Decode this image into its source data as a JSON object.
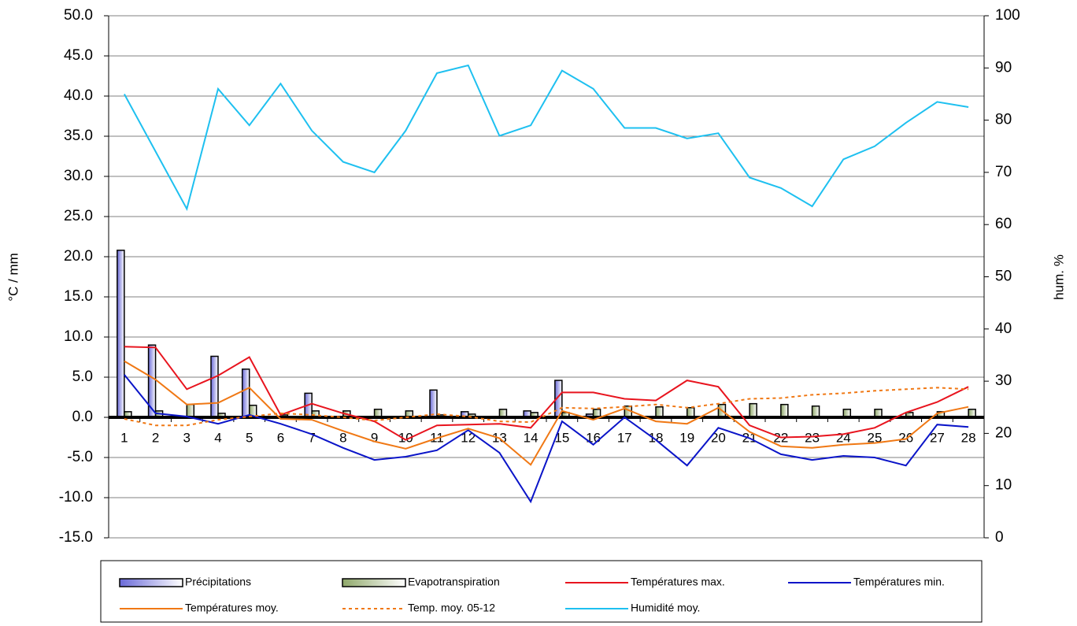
{
  "chart_data": {
    "type": "bar",
    "y_label": "°C / mm",
    "y2_label": "hum. %",
    "categories": [
      "1",
      "2",
      "3",
      "4",
      "5",
      "6",
      "7",
      "8",
      "9",
      "10",
      "11",
      "12",
      "13",
      "14",
      "15",
      "16",
      "17",
      "18",
      "19",
      "20",
      "21",
      "22",
      "23",
      "24",
      "25",
      "26",
      "27",
      "28"
    ],
    "ylim": [
      -15,
      50
    ],
    "yticks": [
      {
        "value": -15,
        "label": "-15.0"
      },
      {
        "value": -10,
        "label": "-10.0"
      },
      {
        "value": -5,
        "label": "-5.0"
      },
      {
        "value": 0,
        "label": "0.0"
      },
      {
        "value": 5,
        "label": "5.0"
      },
      {
        "value": 10,
        "label": "10.0"
      },
      {
        "value": 15,
        "label": "15.0"
      },
      {
        "value": 20,
        "label": "20.0"
      },
      {
        "value": 25,
        "label": "25.0"
      },
      {
        "value": 30,
        "label": "30.0"
      },
      {
        "value": 35,
        "label": "35.0"
      },
      {
        "value": 40,
        "label": "40.0"
      },
      {
        "value": 45,
        "label": "45.0"
      },
      {
        "value": 50,
        "label": "50.0"
      }
    ],
    "y2lim": [
      0,
      100
    ],
    "y2ticks": [
      0,
      10,
      20,
      30,
      40,
      50,
      60,
      70,
      80,
      90,
      100
    ],
    "grid": true,
    "series": [
      {
        "name": "Précipitations",
        "type": "bar",
        "color": "#6a6ad8",
        "values": [
          20.8,
          9.0,
          0,
          7.6,
          6.0,
          0,
          3.0,
          0,
          0,
          0,
          3.4,
          0.7,
          0,
          0.8,
          4.6,
          0.4,
          0,
          0,
          0,
          0,
          0,
          0,
          0,
          0,
          0,
          0,
          0,
          0
        ]
      },
      {
        "name": "Evapotranspiration",
        "type": "bar",
        "color": "#8fa86a",
        "values": [
          0.7,
          0.8,
          1.6,
          0.5,
          1.5,
          0.3,
          0.8,
          0.8,
          1.0,
          0.8,
          0.3,
          0.4,
          1.0,
          0.6,
          0.6,
          1.0,
          1.4,
          1.3,
          1.2,
          1.6,
          1.7,
          1.6,
          1.4,
          1.0,
          1.0,
          0.6,
          0.7,
          1.0
        ]
      },
      {
        "name": "Températures max.",
        "type": "line",
        "color": "#e8141e",
        "values": [
          8.8,
          8.7,
          3.5,
          5.2,
          7.5,
          0.3,
          1.7,
          0.5,
          -0.5,
          -2.8,
          -1.0,
          -0.9,
          -0.8,
          -1.3,
          3.1,
          3.1,
          2.3,
          2.1,
          4.6,
          3.8,
          -1.0,
          -2.5,
          -2.4,
          -2.1,
          -1.3,
          0.6,
          1.9,
          3.8
        ]
      },
      {
        "name": "Températures min.",
        "type": "line",
        "color": "#0a14c8",
        "values": [
          5.3,
          0.5,
          0.1,
          -0.8,
          0.3,
          -0.8,
          -2.1,
          -3.8,
          -5.3,
          -4.9,
          -4.1,
          -1.6,
          -4.4,
          -10.5,
          -0.5,
          -3.4,
          0.0,
          -2.8,
          -6.0,
          -1.3,
          -2.6,
          -4.6,
          -5.3,
          -4.8,
          -5.0,
          -6.0,
          -0.9,
          -1.2
        ]
      },
      {
        "name": "Températures moy.",
        "type": "line",
        "color": "#f07814",
        "values": [
          7.0,
          4.7,
          1.6,
          1.8,
          3.7,
          -0.2,
          -0.3,
          -1.7,
          -3.0,
          -3.9,
          -2.6,
          -1.4,
          -2.6,
          -5.9,
          0.8,
          -0.3,
          1.1,
          -0.5,
          -0.8,
          1.2,
          -1.8,
          -3.6,
          -3.8,
          -3.4,
          -3.2,
          -2.7,
          0.5,
          1.3
        ]
      },
      {
        "name": "Temp. moy. 05-12",
        "type": "line",
        "dashed": true,
        "color": "#f07814",
        "values": [
          -0.2,
          -1.0,
          -1.0,
          -0.3,
          0.1,
          0.5,
          0.3,
          0.0,
          -0.4,
          0.0,
          0.4,
          0.1,
          -0.5,
          -0.6,
          1.2,
          1.1,
          1.3,
          1.6,
          1.2,
          1.7,
          2.3,
          2.4,
          2.8,
          3.0,
          3.3,
          3.5,
          3.7,
          3.5
        ]
      },
      {
        "name": "Humidité moy.",
        "type": "line",
        "axis": "y2",
        "color": "#1ec0f0",
        "values": [
          85,
          74,
          63,
          86,
          79,
          87,
          78,
          72,
          70,
          78,
          89,
          90.5,
          77,
          79,
          89.5,
          86,
          78.5,
          78.5,
          76.5,
          77.5,
          69,
          67,
          63.5,
          72.5,
          75,
          79.5,
          83.5,
          82.5
        ]
      }
    ]
  }
}
